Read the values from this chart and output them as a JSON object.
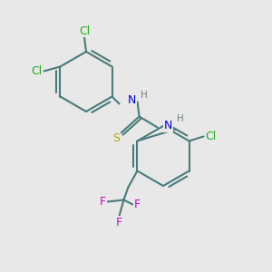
{
  "bg_color": "#e8e8e8",
  "bond_color": "#4a7a7a",
  "bond_width": 1.5,
  "atom_colors": {
    "N": "#0000cc",
    "S": "#aaaa00",
    "Cl_green": "#22aa22",
    "F": "#cc00cc",
    "H": "#708080",
    "C": "#4a7a7a"
  },
  "font_size_atom": 9,
  "font_size_small": 7.5
}
